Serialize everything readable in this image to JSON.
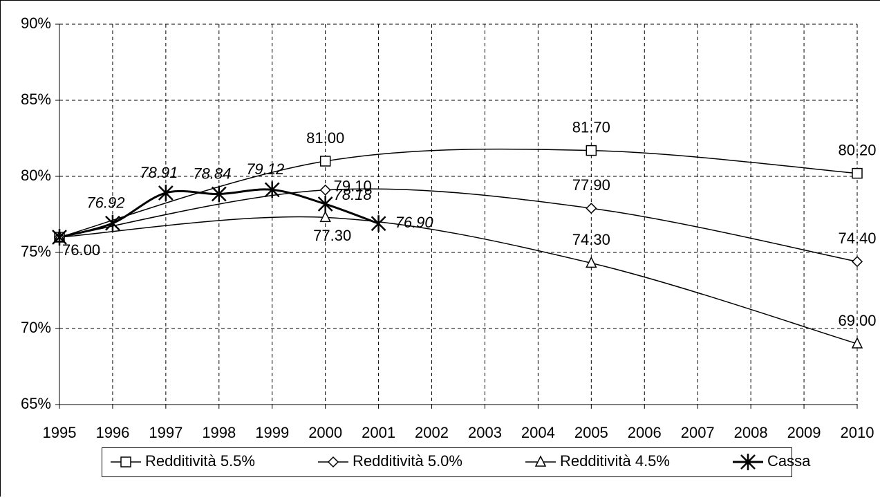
{
  "chart_data": {
    "type": "line",
    "xlim": [
      1995,
      2010
    ],
    "xticks": [
      1995,
      1996,
      1997,
      1998,
      1999,
      2000,
      2001,
      2002,
      2003,
      2004,
      2005,
      2006,
      2007,
      2008,
      2009,
      2010
    ],
    "ylim": [
      65,
      90
    ],
    "yticks": [
      {
        "value": 65,
        "label": "65%"
      },
      {
        "value": 70,
        "label": "70%"
      },
      {
        "value": 75,
        "label": "75%"
      },
      {
        "value": 80,
        "label": "80%"
      },
      {
        "value": 85,
        "label": "85%"
      },
      {
        "value": 90,
        "label": "90%"
      }
    ],
    "grid": true,
    "legend": "bottom",
    "smooth": true,
    "series": [
      {
        "name": "Redditività 5.5%",
        "color": "#000000",
        "marker": "square",
        "x": [
          1995,
          2000,
          2005,
          2010
        ],
        "values": [
          76,
          81,
          81.7,
          80.2
        ],
        "value_labels": [
          null,
          "81.00",
          "81.70",
          "80.20"
        ]
      },
      {
        "name": "Redditività 5.0%",
        "color": "#000000",
        "marker": "diamond",
        "x": [
          1995,
          2000,
          2005,
          2010
        ],
        "values": [
          76,
          79.1,
          77.9,
          74.4
        ],
        "value_labels": [
          null,
          "79.10",
          "77.90",
          "74.40"
        ]
      },
      {
        "name": "Redditività 4.5%",
        "color": "#000000",
        "marker": "triangle",
        "x": [
          1995,
          2000,
          2005,
          2010
        ],
        "values": [
          76,
          77.3,
          74.3,
          69
        ],
        "value_labels": [
          "76.00",
          "77.30",
          "74.30",
          "69.00"
        ]
      },
      {
        "name": "Cassa",
        "color": "#000000",
        "marker": "asterisk",
        "x": [
          1995,
          1996,
          1997,
          1998,
          1999,
          2000,
          2001
        ],
        "values": [
          76,
          76.92,
          78.91,
          78.84,
          79.12,
          78.18,
          76.9
        ],
        "value_labels": [
          null,
          "76.92",
          "78.91",
          "78.84",
          "79.12",
          "78.18",
          "76.90"
        ]
      }
    ]
  }
}
